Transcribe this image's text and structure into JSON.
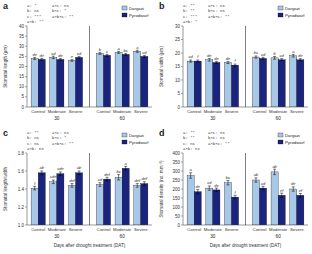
{
  "chart_data": [
    {
      "type": "bar",
      "title": "a",
      "ylabel": "Stomatal length (µm)",
      "categories": [
        "Control",
        "Moderate",
        "Severe",
        "Control",
        "Moderate",
        "Severe"
      ],
      "groups": [
        "30",
        "60"
      ],
      "series": [
        {
          "name": "Dargazi",
          "color": "#A8C8E8",
          "values": [
            24.0,
            24.5,
            23.0,
            26.5,
            27.0,
            27.5
          ],
          "errors": [
            0.5,
            0.6,
            0.4,
            0.5,
            0.5,
            0.5
          ],
          "annotations": [
            "de",
            "cd",
            "e",
            "b",
            "a",
            "a"
          ]
        },
        {
          "name": "Pyrodwarf",
          "color": "#1A237E",
          "values": [
            23.5,
            23.5,
            24.5,
            25.5,
            26.0,
            25.0
          ],
          "errors": [
            0.5,
            0.5,
            0.5,
            0.5,
            0.5,
            0.5
          ],
          "annotations": [
            "de",
            "de",
            "cd",
            "c",
            "bc",
            "cd"
          ]
        }
      ],
      "annotations": [
        [
          "a: *",
          "b: ns",
          "c: ***",
          "a×b: **"
        ],
        [
          "a×c: ns",
          "b×c: *",
          "a×b×c: **"
        ]
      ],
      "ylim": [
        0,
        40
      ],
      "yticks": [
        0,
        5,
        10,
        15,
        20,
        25,
        30,
        35,
        40
      ],
      "grid": false,
      "legend": "upper right"
    },
    {
      "type": "bar",
      "title": "b",
      "ylabel": "Stomatal width (µm)",
      "categories": [
        "Control",
        "Moderate",
        "Severe",
        "Control",
        "Moderate",
        "Severe"
      ],
      "groups": [
        "30",
        "60"
      ],
      "series": [
        {
          "name": "Dargazi",
          "color": "#A8C8E8",
          "values": [
            17.0,
            17.5,
            16.5,
            18.5,
            18.2,
            19.0
          ],
          "errors": [
            0.4,
            0.5,
            0.4,
            0.4,
            0.5,
            0.5
          ],
          "annotations": [
            "cd",
            "de",
            "de",
            "bc",
            "b",
            "a"
          ]
        },
        {
          "name": "Pyrodwarf",
          "color": "#1A237E",
          "values": [
            17.0,
            16.5,
            15.5,
            18.0,
            17.5,
            17.5
          ],
          "errors": [
            0.4,
            0.4,
            0.4,
            0.4,
            0.4,
            0.4
          ],
          "annotations": [
            "f",
            "de",
            "f",
            "cd",
            "cd",
            "de"
          ]
        }
      ],
      "annotations": [
        [
          "a: **",
          "b: **",
          "c: ***",
          "a×b: *"
        ],
        [
          "a×c: ns",
          "b×c: ns",
          "a×b×c: **"
        ]
      ],
      "ylim": [
        0,
        30
      ],
      "yticks": [
        0,
        5,
        10,
        15,
        20,
        25,
        30
      ],
      "grid": false,
      "legend": "upper right"
    },
    {
      "type": "bar",
      "title": "c",
      "ylabel": "Stomatal length/width",
      "xlabel": "Days after drought treatment (DAT)",
      "categories": [
        "Control",
        "Moderate",
        "Severe",
        "Control",
        "Moderate",
        "Severe"
      ],
      "groups": [
        "30",
        "60"
      ],
      "series": [
        {
          "name": "Dargazi",
          "color": "#A8C8E8",
          "values": [
            1.41,
            1.48,
            1.44,
            1.45,
            1.53,
            1.44
          ],
          "errors": [
            0.02,
            0.02,
            0.02,
            0.02,
            0.03,
            0.02
          ],
          "annotations": [
            "f",
            "cde",
            "def",
            "cd",
            "bc",
            "def"
          ]
        },
        {
          "name": "Pyrodwarf",
          "color": "#1A237E",
          "values": [
            1.58,
            1.57,
            1.58,
            1.51,
            1.63,
            1.46
          ],
          "errors": [
            0.02,
            0.02,
            0.02,
            0.02,
            0.02,
            0.02
          ],
          "annotations": [
            "ab",
            "cde",
            "ab",
            "def",
            "a",
            "def"
          ]
        }
      ],
      "annotations": [
        [
          "a: **",
          "b: ns",
          "c: ns",
          "a×b: ns"
        ],
        [
          "a×c: ns",
          "b×c: *",
          "a×b×c: **"
        ]
      ],
      "ylim": [
        1.0,
        1.8
      ],
      "yticks": [
        {
          "value": 1.0,
          "label": "1.0"
        },
        1.2,
        1.4,
        1.6,
        1.8
      ],
      "grid": false,
      "legend": "upper right"
    },
    {
      "type": "bar",
      "title": "d",
      "ylabel": "Stomatal density (no. mm⁻²)",
      "xlabel": "Days after drought treatment (DAT)",
      "categories": [
        "Control",
        "Moderate",
        "Severe",
        "Control",
        "Moderate",
        "Severe"
      ],
      "groups": [
        "30",
        "60"
      ],
      "series": [
        {
          "name": "Dargazi",
          "color": "#A8C8E8",
          "values": [
            275,
            205,
            235,
            250,
            295,
            200
          ],
          "errors": [
            15,
            12,
            12,
            12,
            15,
            12
          ],
          "annotations": [
            "a",
            "cd",
            "bc",
            "ab",
            "ab",
            "de"
          ]
        },
        {
          "name": "Pyrodwarf",
          "color": "#1A237E",
          "values": [
            185,
            195,
            155,
            205,
            165,
            165
          ],
          "errors": [
            12,
            10,
            10,
            10,
            12,
            10
          ],
          "annotations": [
            "de",
            "de",
            "f",
            "cd",
            "ef",
            "ef"
          ]
        }
      ],
      "annotations": [
        [
          "a: **",
          "b: **",
          "c: ns",
          "a×b: ns"
        ],
        [
          "a×c: ns",
          "b×c: ns",
          "a×b×c: **"
        ]
      ],
      "ylim": [
        0,
        400
      ],
      "yticks": [
        0,
        50,
        100,
        150,
        200,
        250,
        300,
        350,
        400
      ],
      "grid": false,
      "legend": "upper right"
    }
  ]
}
